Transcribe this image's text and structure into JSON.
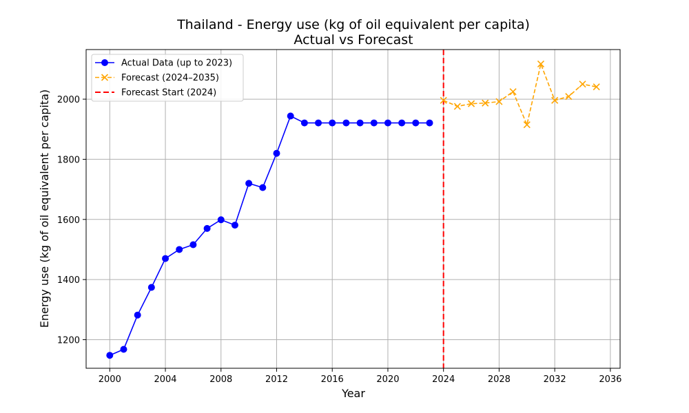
{
  "chart_data": {
    "type": "line",
    "title": "Thailand - Energy use (kg of oil equivalent per capita)",
    "subtitle": "Actual vs Forecast",
    "xlabel": "Year",
    "ylabel": "Energy use (kg of oil equivalent per capita)",
    "xlim": [
      1998.3,
      2036.7
    ],
    "ylim": [
      1105,
      2165
    ],
    "xticks": [
      2000,
      2004,
      2008,
      2012,
      2016,
      2020,
      2024,
      2028,
      2032,
      2036
    ],
    "yticks": [
      1200,
      1400,
      1600,
      1800,
      2000
    ],
    "grid": true,
    "legend_position": "top-left",
    "series": [
      {
        "name": "Actual Data (up to 2023)",
        "color": "#0000ff",
        "style": "solid",
        "marker": "circle",
        "x": [
          2000,
          2001,
          2002,
          2003,
          2004,
          2005,
          2006,
          2007,
          2008,
          2009,
          2010,
          2011,
          2012,
          2013,
          2014,
          2015,
          2016,
          2017,
          2018,
          2019,
          2020,
          2021,
          2022,
          2023
        ],
        "y": [
          1148,
          1168,
          1282,
          1374,
          1470,
          1500,
          1516,
          1570,
          1599,
          1581,
          1720,
          1706,
          1820,
          1944,
          1921,
          1921,
          1921,
          1921,
          1921,
          1921,
          1921,
          1921,
          1921,
          1921
        ]
      },
      {
        "name": "Forecast (2024–2035)",
        "color": "#ffa500",
        "style": "dashed",
        "marker": "x",
        "x": [
          2024,
          2025,
          2026,
          2027,
          2028,
          2029,
          2030,
          2031,
          2032,
          2033,
          2034,
          2035
        ],
        "y": [
          1996,
          1976,
          1985,
          1987,
          1992,
          2025,
          1915,
          2117,
          1996,
          2009,
          2050,
          2041
        ]
      }
    ],
    "vlines": [
      {
        "name": "Forecast Start (2024)",
        "x": 2024,
        "color": "#ff0000",
        "style": "dashed"
      }
    ]
  }
}
